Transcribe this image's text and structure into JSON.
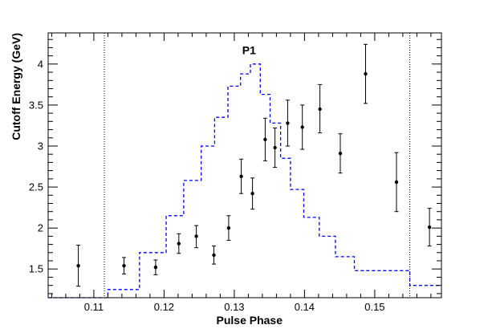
{
  "chart_data": {
    "type": "scatter",
    "title": "",
    "xlabel": "Pulse Phase",
    "ylabel": "Cutoff Energy (GeV)",
    "xlim": [
      0.1035,
      0.1595
    ],
    "ylim": [
      1.15,
      4.38
    ],
    "grid": false,
    "x_ticks": [
      0.11,
      0.12,
      0.13,
      0.14,
      0.15
    ],
    "x_tick_labels": [
      "0.11",
      "0.12",
      "0.13",
      "0.14",
      "0.15"
    ],
    "y_ticks": [
      1.5,
      2,
      2.5,
      3,
      3.5,
      4
    ],
    "y_tick_labels": [
      "1.5",
      "2",
      "2.5",
      "3",
      "3.5",
      "4"
    ],
    "annotation": "P1",
    "annotation_position": [
      0.1321,
      4.12
    ],
    "region_bounds": [
      0.1115,
      0.155
    ],
    "points": [
      {
        "x": 0.1078,
        "y": 1.54,
        "ylo": 1.29,
        "yhi": 1.79
      },
      {
        "x": 0.1143,
        "y": 1.54,
        "ylo": 1.44,
        "yhi": 1.64
      },
      {
        "x": 0.1188,
        "y": 1.52,
        "ylo": 1.43,
        "yhi": 1.61
      },
      {
        "x": 0.1221,
        "y": 1.81,
        "ylo": 1.69,
        "yhi": 1.93
      },
      {
        "x": 0.1246,
        "y": 1.9,
        "ylo": 1.76,
        "yhi": 2.03
      },
      {
        "x": 0.1271,
        "y": 1.67,
        "ylo": 1.56,
        "yhi": 1.78
      },
      {
        "x": 0.1292,
        "y": 2.0,
        "ylo": 1.85,
        "yhi": 2.15
      },
      {
        "x": 0.131,
        "y": 2.63,
        "ylo": 2.42,
        "yhi": 2.84
      },
      {
        "x": 0.1326,
        "y": 2.42,
        "ylo": 2.23,
        "yhi": 2.61
      },
      {
        "x": 0.1344,
        "y": 3.08,
        "ylo": 2.82,
        "yhi": 3.34
      },
      {
        "x": 0.1358,
        "y": 2.98,
        "ylo": 2.74,
        "yhi": 3.22
      },
      {
        "x": 0.1376,
        "y": 3.28,
        "ylo": 3.0,
        "yhi": 3.56
      },
      {
        "x": 0.1397,
        "y": 3.23,
        "ylo": 2.96,
        "yhi": 3.5
      },
      {
        "x": 0.1422,
        "y": 3.45,
        "ylo": 3.16,
        "yhi": 3.75
      },
      {
        "x": 0.1451,
        "y": 2.91,
        "ylo": 2.67,
        "yhi": 3.15
      },
      {
        "x": 0.1487,
        "y": 3.88,
        "ylo": 3.52,
        "yhi": 4.24
      },
      {
        "x": 0.1531,
        "y": 2.56,
        "ylo": 2.2,
        "yhi": 2.92
      },
      {
        "x": 0.1578,
        "y": 2.01,
        "ylo": 1.78,
        "yhi": 2.24
      }
    ],
    "profile": {
      "style": "dashed-step",
      "color": "#0000ff",
      "edges": [
        0.1035,
        0.1115,
        0.112,
        0.1165,
        0.1203,
        0.1228,
        0.1253,
        0.1272,
        0.1291,
        0.1309,
        0.1323,
        0.1337,
        0.1351,
        0.1366,
        0.138,
        0.1399,
        0.1421,
        0.1444,
        0.1471,
        0.1506,
        0.155,
        0.1595
      ],
      "values": [
        1.15,
        1.15,
        1.25,
        1.7,
        2.15,
        2.58,
        3.0,
        3.35,
        3.73,
        3.88,
        4.0,
        3.63,
        3.28,
        2.85,
        2.47,
        2.13,
        1.9,
        1.65,
        1.48,
        1.48,
        1.3
      ]
    }
  }
}
